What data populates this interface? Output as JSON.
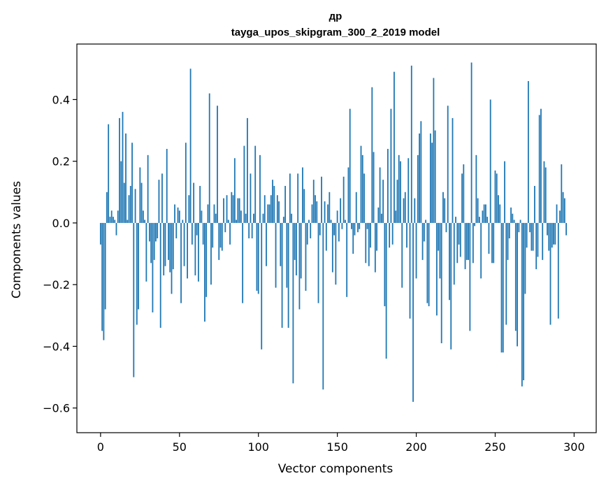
{
  "chart_data": {
    "type": "bar",
    "title": "др",
    "subtitle": "tayga_upos_skipgram_300_2_2019 model",
    "xlabel": "Vector components",
    "ylabel": "Components values",
    "xlim": [
      -15,
      314
    ],
    "ylim": [
      -0.68,
      0.58
    ],
    "xticks": [
      0,
      50,
      100,
      150,
      200,
      250,
      300
    ],
    "yticks": [
      -0.6,
      -0.4,
      -0.2,
      0.0,
      0.2,
      0.4
    ],
    "ytick_labels": [
      "−0.6",
      "−0.4",
      "−0.2",
      "0.0",
      "0.2",
      "0.4"
    ],
    "grid": false,
    "bar_color": "#1f77b4",
    "values": [
      -0.07,
      -0.35,
      -0.38,
      -0.28,
      0.1,
      0.32,
      0.02,
      0.04,
      0.02,
      0.01,
      -0.04,
      0.04,
      0.34,
      0.2,
      0.36,
      0.13,
      0.29,
      0.01,
      0.09,
      0.12,
      0.26,
      -0.5,
      0.11,
      -0.33,
      -0.28,
      0.18,
      0.13,
      0.04,
      0.01,
      -0.19,
      0.22,
      -0.06,
      -0.13,
      -0.29,
      -0.12,
      -0.06,
      -0.05,
      0.14,
      -0.34,
      0.16,
      -0.17,
      -0.14,
      0.24,
      -0.12,
      -0.16,
      -0.23,
      -0.15,
      0.06,
      -0.05,
      0.05,
      0.04,
      -0.26,
      0.01,
      -0.14,
      0.26,
      -0.18,
      0.09,
      0.5,
      -0.07,
      0.13,
      -0.17,
      -0.04,
      -0.19,
      0.12,
      0.04,
      -0.07,
      -0.32,
      -0.24,
      0.06,
      0.42,
      -0.2,
      -0.08,
      0.06,
      0.03,
      0.38,
      -0.12,
      -0.08,
      -0.09,
      0.08,
      -0.03,
      0.09,
      0.01,
      -0.07,
      0.1,
      0.09,
      0.21,
      0.01,
      0.08,
      0.08,
      0.04,
      -0.26,
      0.25,
      0.03,
      0.34,
      -0.05,
      0.16,
      -0.05,
      0.03,
      0.25,
      -0.22,
      -0.23,
      0.22,
      -0.41,
      0.03,
      0.09,
      -0.14,
      0.06,
      0.06,
      0.09,
      0.14,
      0.12,
      -0.21,
      0.09,
      0.07,
      -0.14,
      -0.34,
      0.02,
      0.12,
      -0.21,
      -0.34,
      0.16,
      0.03,
      -0.52,
      -0.12,
      -0.17,
      0.16,
      -0.28,
      -0.18,
      0.18,
      0.11,
      -0.22,
      -0.07,
      0.01,
      -0.05,
      0.06,
      0.14,
      0.09,
      0.07,
      -0.26,
      -0.04,
      0.15,
      -0.54,
      0.07,
      -0.09,
      0.06,
      0.1,
      0.01,
      -0.16,
      -0.04,
      -0.2,
      0.04,
      -0.06,
      0.08,
      -0.02,
      0.15,
      0.01,
      -0.24,
      0.18,
      0.37,
      -0.02,
      -0.1,
      -0.04,
      0.1,
      -0.03,
      -0.02,
      0.25,
      0.22,
      0.16,
      -0.13,
      -0.02,
      -0.14,
      -0.08,
      0.44,
      0.23,
      -0.16,
      -0.09,
      0.05,
      0.18,
      0.03,
      0.14,
      -0.27,
      -0.44,
      0.24,
      -0.08,
      0.37,
      -0.07,
      0.49,
      0.04,
      0.14,
      0.22,
      0.2,
      -0.21,
      0.08,
      0.1,
      -0.08,
      0.21,
      -0.31,
      0.51,
      -0.58,
      0.08,
      -0.18,
      0.22,
      0.29,
      0.33,
      -0.12,
      -0.06,
      0.01,
      -0.26,
      -0.27,
      0.29,
      0.26,
      0.47,
      0.3,
      -0.3,
      -0.09,
      -0.18,
      -0.39,
      0.1,
      0.08,
      -0.03,
      0.38,
      -0.25,
      -0.41,
      0.34,
      -0.2,
      0.02,
      -0.13,
      -0.07,
      -0.11,
      0.16,
      0.19,
      -0.15,
      -0.12,
      -0.12,
      -0.35,
      0.52,
      -0.13,
      -0.01,
      0.22,
      0.08,
      0.02,
      -0.18,
      0.04,
      0.06,
      0.06,
      0.02,
      -0.1,
      0.4,
      -0.13,
      -0.13,
      0.17,
      0.16,
      0.09,
      0.06,
      -0.42,
      -0.42,
      0.2,
      -0.33,
      -0.12,
      -0.05,
      0.05,
      0.03,
      0.01,
      -0.35,
      -0.4,
      -0.03,
      0.01,
      -0.53,
      -0.51,
      -0.23,
      -0.08,
      0.46,
      -0.03,
      -0.09,
      -0.09,
      0.12,
      -0.15,
      -0.11,
      0.35,
      0.37,
      -0.12,
      0.2,
      0.18,
      -0.04,
      -0.09,
      -0.33,
      -0.08,
      -0.07,
      -0.07,
      0.06,
      -0.31,
      0.04,
      0.19,
      0.1,
      0.08,
      -0.04
    ]
  }
}
